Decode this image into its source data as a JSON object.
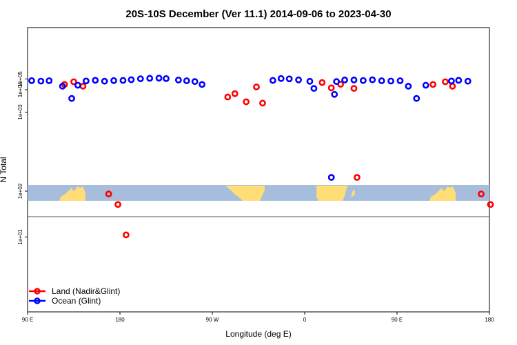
{
  "chart_data": {
    "type": "scatter",
    "title": "20S-10S December (Ver 11.1)   2014-09-06 to 2023-04-30",
    "xlabel": "Longitude (deg E)",
    "ylabel": "N Total",
    "x_axis": {
      "range_deg_east_unwrapped": [
        90,
        450
      ],
      "ticks": [
        {
          "value": 90,
          "label": "90 E"
        },
        {
          "value": 180,
          "label": "180"
        },
        {
          "value": 270,
          "label": "90 W"
        },
        {
          "value": 360,
          "label": "0"
        },
        {
          "value": 450,
          "label": "90 E"
        },
        {
          "value": 540,
          "label": "180"
        }
      ]
    },
    "y_axis": {
      "scale": "log",
      "ticks": [
        {
          "value": 10,
          "label": "1e+01"
        },
        {
          "value": 100,
          "label": "1e+02"
        },
        {
          "value": 1000,
          "label": "1e+03"
        },
        {
          "value": 10000,
          "label": "1e+04"
        },
        {
          "value": 100000,
          "label": "1e+05"
        }
      ]
    },
    "legend": {
      "position": "bottom-left",
      "entries": [
        {
          "name": "Land (Nadir&Glint)",
          "color": "#ff0000"
        },
        {
          "name": "Ocean (Glint)",
          "color": "#0000ff"
        }
      ]
    },
    "series": [
      {
        "name": "Land (Nadir&Glint)",
        "color": "#ff0000",
        "panel": "upper",
        "points": [
          {
            "lon": 126,
            "n": 23000
          },
          {
            "lon": 135,
            "n": 41000
          },
          {
            "lon": 144,
            "n": 17000
          },
          {
            "lon": 285,
            "n": 4100
          },
          {
            "lon": 292,
            "n": 6000
          },
          {
            "lon": 303,
            "n": 2500
          },
          {
            "lon": 313,
            "n": 15000
          },
          {
            "lon": 319,
            "n": 2200
          },
          {
            "lon": 377,
            "n": 34000
          },
          {
            "lon": 386,
            "n": 13000
          },
          {
            "lon": 395,
            "n": 24000
          },
          {
            "lon": 408,
            "n": 12000
          },
          {
            "lon": 485,
            "n": 23000
          },
          {
            "lon": 497,
            "n": 41000
          },
          {
            "lon": 504,
            "n": 17000
          }
        ]
      },
      {
        "name": "Land (Nadir&Glint)",
        "color": "#ff0000",
        "panel": "lower",
        "points": [
          {
            "lon": 411,
            "n": 230
          },
          {
            "lon": 169,
            "n": 85
          },
          {
            "lon": 178,
            "n": 48
          },
          {
            "lon": 186,
            "n": 11
          },
          {
            "lon": 532,
            "n": 85
          },
          {
            "lon": 541,
            "n": 48
          }
        ]
      },
      {
        "name": "Ocean (Glint)",
        "color": "#0000ff",
        "panel": "upper",
        "points": [
          {
            "lon": 94,
            "n": 55000
          },
          {
            "lon": 103,
            "n": 48000
          },
          {
            "lon": 111,
            "n": 54000
          },
          {
            "lon": 124,
            "n": 17000
          },
          {
            "lon": 133,
            "n": 3500
          },
          {
            "lon": 139,
            "n": 20000
          },
          {
            "lon": 147,
            "n": 50000
          },
          {
            "lon": 156,
            "n": 61000
          },
          {
            "lon": 165,
            "n": 47000
          },
          {
            "lon": 174,
            "n": 56000
          },
          {
            "lon": 183,
            "n": 59000
          },
          {
            "lon": 191,
            "n": 74000
          },
          {
            "lon": 200,
            "n": 112000
          },
          {
            "lon": 209,
            "n": 150000
          },
          {
            "lon": 218,
            "n": 185000
          },
          {
            "lon": 225,
            "n": 127000
          },
          {
            "lon": 237,
            "n": 67000
          },
          {
            "lon": 245,
            "n": 53000
          },
          {
            "lon": 253,
            "n": 43000
          },
          {
            "lon": 260,
            "n": 23000
          },
          {
            "lon": 329,
            "n": 59000
          },
          {
            "lon": 337,
            "n": 130000
          },
          {
            "lon": 345,
            "n": 110000
          },
          {
            "lon": 354,
            "n": 70000
          },
          {
            "lon": 365,
            "n": 46000
          },
          {
            "lon": 369,
            "n": 12000
          },
          {
            "lon": 389,
            "n": 5500
          },
          {
            "lon": 391,
            "n": 43000
          },
          {
            "lon": 399,
            "n": 68000
          },
          {
            "lon": 408,
            "n": 68000
          },
          {
            "lon": 417,
            "n": 57000
          },
          {
            "lon": 426,
            "n": 73000
          },
          {
            "lon": 435,
            "n": 53000
          },
          {
            "lon": 444,
            "n": 49000
          },
          {
            "lon": 453,
            "n": 54000
          },
          {
            "lon": 461,
            "n": 17000
          },
          {
            "lon": 469,
            "n": 3500
          },
          {
            "lon": 478,
            "n": 20000
          },
          {
            "lon": 503,
            "n": 50000
          },
          {
            "lon": 510,
            "n": 61000
          },
          {
            "lon": 519,
            "n": 47000
          }
        ]
      },
      {
        "name": "Ocean (Glint)",
        "color": "#0000ff",
        "panel": "lower",
        "points": [
          {
            "lon": 386,
            "n": 230
          }
        ]
      }
    ],
    "inset_map": {
      "description": "latitude band map strip",
      "ocean_color": "#a6bddb",
      "land_color": "#ffdd77"
    }
  }
}
